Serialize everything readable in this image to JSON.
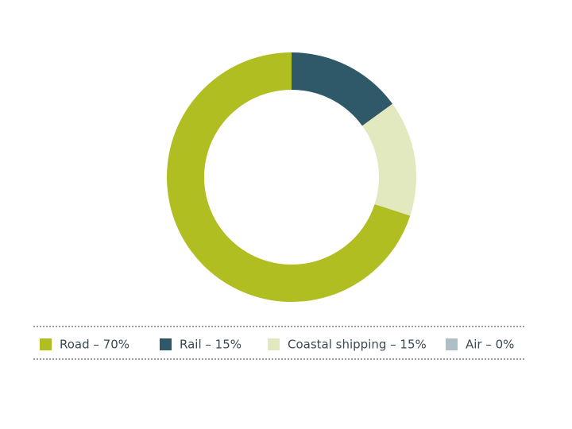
{
  "chart_data": {
    "type": "donut",
    "categories": [
      "Road – 70%",
      "Rail – 15%",
      "Coastal shipping – 15%",
      "Air – 0%"
    ],
    "values": [
      70,
      15,
      15,
      0
    ],
    "colors": [
      "#b0be22",
      "#2f5868",
      "#e2e9be",
      "#aebfc8"
    ]
  }
}
